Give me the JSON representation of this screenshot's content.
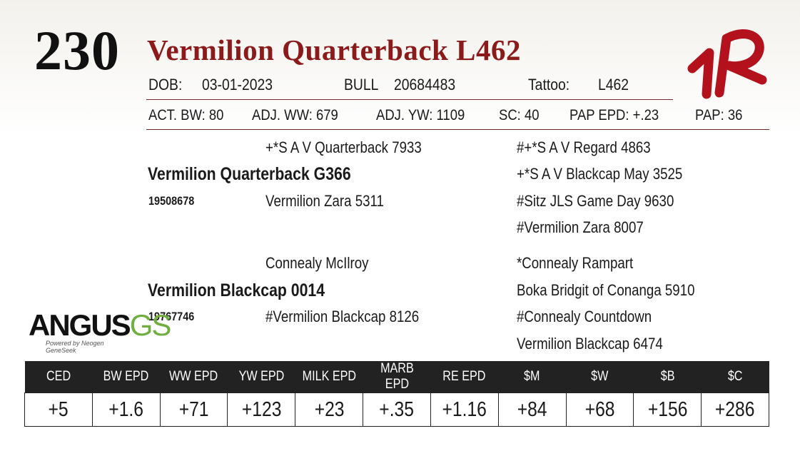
{
  "lot_number": "230",
  "animal_name": "Vermilion Quarterback L462",
  "dob_label": "DOB:",
  "dob": "03-01-2023",
  "sex_label": "BULL",
  "registration": "20684483",
  "tattoo_label": "Tattoo:",
  "tattoo": "L462",
  "performance": [
    "ACT. BW: 80",
    "ADJ. WW: 679",
    "ADJ. YW: 1109",
    "SC: 40",
    "PAP EPD: +.23",
    "PAP: 36"
  ],
  "pedigree": {
    "sire": {
      "name": "Vermilion Quarterback G366",
      "reg": "19508678",
      "sire": "+*S A V Quarterback 7933",
      "dam": "Vermilion Zara 5311",
      "sire_sire": "#+*S A V Regard 4863",
      "sire_dam": "+*S A V Blackcap May 3525",
      "dam_sire": "#Sitz JLS Game Day 9630",
      "dam_dam": "#Vermilion Zara 8007"
    },
    "dam": {
      "name": "Vermilion Blackcap 0014",
      "reg": "19767746",
      "sire": "Connealy McIlroy",
      "dam": "#Vermilion Blackcap 8126",
      "sire_sire": "*Connealy Rampart",
      "sire_dam": "Boka Bridgit of Conanga 5910",
      "dam_sire": "#Connealy Countdown",
      "dam_dam": "Vermilion Blackcap 6474"
    }
  },
  "logos": {
    "ranch_mark": "VR",
    "angus_text": "ANGUS",
    "angus_suffix": "GS",
    "angus_tagline": "Powered by Neogen GeneSeek",
    "brand_red": "#b3121d",
    "angus_green": "#6fae3f"
  },
  "epd_table": {
    "headers": [
      "CED",
      "BW EPD",
      "WW EPD",
      "YW EPD",
      "MILK EPD",
      "MARB EPD",
      "RE EPD",
      "$M",
      "$W",
      "$B",
      "$C"
    ],
    "values": [
      "+5",
      "+1.6",
      "+71",
      "+123",
      "+23",
      "+.35",
      "+1.16",
      "+84",
      "+68",
      "+156",
      "+286"
    ]
  }
}
